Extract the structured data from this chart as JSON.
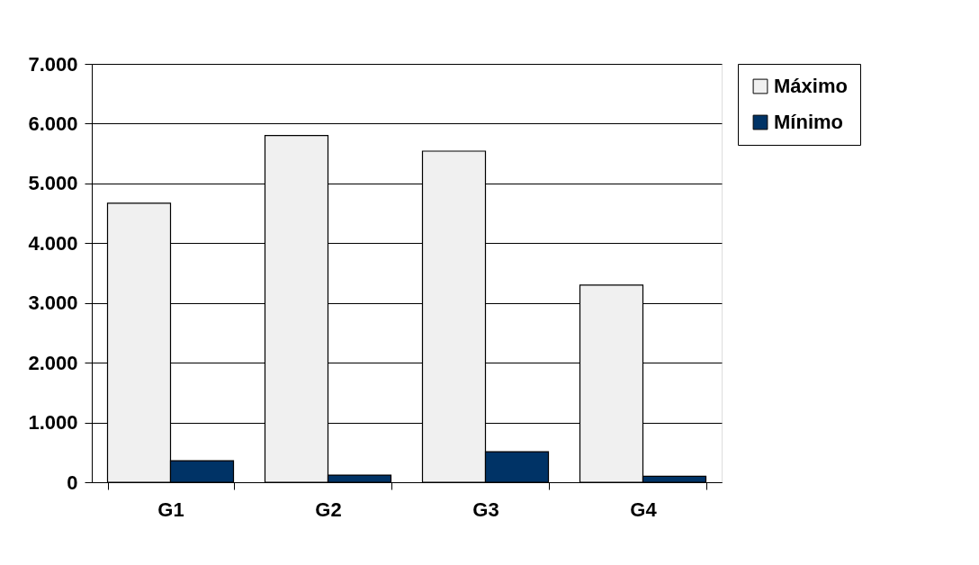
{
  "chart_data": {
    "type": "bar",
    "categories": [
      "G1",
      "G2",
      "G3",
      "G4"
    ],
    "series": [
      {
        "name": "Máximo",
        "color": "#f0f0f0",
        "values": [
          4670,
          5800,
          5540,
          3300
        ]
      },
      {
        "name": "Mínimo",
        "color": "#003366",
        "values": [
          360,
          120,
          510,
          100
        ]
      }
    ],
    "ylim": [
      0,
      7000
    ],
    "yticks": [
      {
        "value": 0,
        "label": "0"
      },
      {
        "value": 1000,
        "label": "1.000"
      },
      {
        "value": 2000,
        "label": "2.000"
      },
      {
        "value": 3000,
        "label": "3.000"
      },
      {
        "value": 4000,
        "label": "4.000"
      },
      {
        "value": 5000,
        "label": "5.000"
      },
      {
        "value": 6000,
        "label": "6.000"
      },
      {
        "value": 7000,
        "label": "7.000"
      }
    ],
    "grid": "y",
    "legend": "right"
  }
}
